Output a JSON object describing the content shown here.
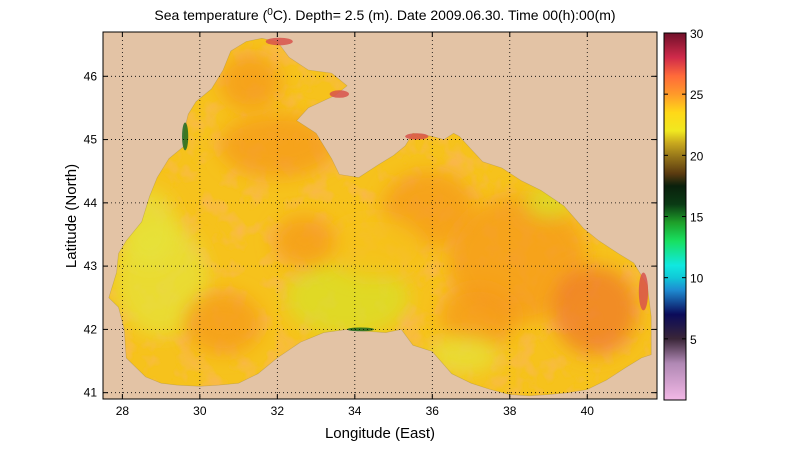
{
  "title": {
    "prefix": "Sea temperature (",
    "sup": "0",
    "suffix": "C). Depth=  2.5 (m). Date 2009.06.30. Time 00(h):00(m)"
  },
  "map": {
    "xlabel": "Longitude (East)",
    "ylabel": "Latitude (North)",
    "xlim": [
      27.5,
      41.8
    ],
    "ylim": [
      40.9,
      46.7
    ],
    "xticks": [
      28,
      30,
      32,
      34,
      36,
      38,
      40
    ],
    "yticks": [
      41,
      42,
      43,
      44,
      45,
      46
    ],
    "grid": "dotted",
    "colors": {
      "land": "#e3c3a5",
      "sea_base": "#f6c21c",
      "sea_warm": "#f59a1e",
      "sea_hot": "#ef7a2a",
      "sea_cool": "#e6e33a",
      "sea_coastal": "#d8e025",
      "coast_cold": "#1e6a1e",
      "coast_hot": "#d8534b"
    },
    "coastline_lonlat": [
      [
        27.65,
        42.5
      ],
      [
        27.9,
        42.35
      ],
      [
        28.05,
        42.0
      ],
      [
        28.1,
        41.55
      ],
      [
        28.6,
        41.25
      ],
      [
        29.0,
        41.15
      ],
      [
        29.4,
        41.12
      ],
      [
        30.0,
        41.1
      ],
      [
        30.5,
        41.12
      ],
      [
        31.0,
        41.15
      ],
      [
        31.5,
        41.3
      ],
      [
        32.0,
        41.55
      ],
      [
        32.6,
        41.8
      ],
      [
        33.2,
        41.95
      ],
      [
        33.8,
        42.0
      ],
      [
        34.3,
        41.97
      ],
      [
        34.8,
        41.95
      ],
      [
        35.2,
        42.0
      ],
      [
        35.5,
        41.75
      ],
      [
        36.0,
        41.65
      ],
      [
        36.5,
        41.3
      ],
      [
        37.0,
        41.15
      ],
      [
        37.5,
        41.05
      ],
      [
        38.0,
        40.97
      ],
      [
        38.5,
        40.95
      ],
      [
        39.0,
        40.97
      ],
      [
        39.5,
        41.0
      ],
      [
        40.0,
        41.05
      ],
      [
        40.5,
        41.2
      ],
      [
        41.0,
        41.4
      ],
      [
        41.4,
        41.55
      ],
      [
        41.65,
        41.6
      ],
      [
        41.65,
        42.2
      ],
      [
        41.55,
        42.7
      ],
      [
        41.2,
        43.05
      ],
      [
        40.8,
        43.2
      ],
      [
        40.3,
        43.4
      ],
      [
        39.9,
        43.6
      ],
      [
        39.4,
        43.95
      ],
      [
        38.8,
        44.2
      ],
      [
        38.3,
        44.35
      ],
      [
        37.8,
        44.55
      ],
      [
        37.3,
        44.65
      ],
      [
        37.0,
        44.85
      ],
      [
        36.7,
        45.05
      ],
      [
        36.55,
        45.1
      ],
      [
        36.3,
        45.0
      ],
      [
        36.0,
        45.05
      ],
      [
        35.5,
        45.1
      ],
      [
        35.3,
        44.9
      ],
      [
        35.0,
        44.75
      ],
      [
        34.6,
        44.6
      ],
      [
        34.1,
        44.4
      ],
      [
        33.6,
        44.45
      ],
      [
        33.4,
        44.7
      ],
      [
        33.0,
        45.1
      ],
      [
        32.5,
        45.3
      ],
      [
        32.8,
        45.5
      ],
      [
        33.5,
        45.7
      ],
      [
        33.8,
        45.85
      ],
      [
        33.4,
        46.05
      ],
      [
        32.8,
        46.1
      ],
      [
        32.3,
        46.3
      ],
      [
        32.0,
        46.55
      ],
      [
        31.6,
        46.6
      ],
      [
        31.2,
        46.55
      ],
      [
        30.8,
        46.4
      ],
      [
        30.6,
        46.1
      ],
      [
        30.3,
        45.8
      ],
      [
        29.9,
        45.6
      ],
      [
        29.7,
        45.4
      ],
      [
        29.6,
        45.15
      ],
      [
        29.6,
        44.9
      ],
      [
        29.2,
        44.7
      ],
      [
        28.9,
        44.4
      ],
      [
        28.7,
        44.1
      ],
      [
        28.5,
        43.7
      ],
      [
        28.1,
        43.4
      ],
      [
        27.9,
        43.2
      ],
      [
        27.85,
        42.9
      ],
      [
        27.65,
        42.5
      ]
    ]
  },
  "colorbar": {
    "min": 0,
    "max": 30,
    "ticks": [
      5,
      10,
      15,
      20,
      25,
      30
    ],
    "colormap": [
      [
        0,
        "#f2b8e6"
      ],
      [
        3,
        "#b088b4"
      ],
      [
        5,
        "#3a2638"
      ],
      [
        7,
        "#0b0b5a"
      ],
      [
        9,
        "#1e8cd2"
      ],
      [
        10,
        "#10c8d8"
      ],
      [
        11,
        "#10e8e0"
      ],
      [
        13,
        "#18e060"
      ],
      [
        14.5,
        "#1ea02a"
      ],
      [
        16,
        "#0a3a14"
      ],
      [
        17.5,
        "#0a200c"
      ],
      [
        18.5,
        "#5a3a10"
      ],
      [
        20,
        "#9a7a1a"
      ],
      [
        21,
        "#c8a81e"
      ],
      [
        22,
        "#f0e820"
      ],
      [
        23.5,
        "#ffd818"
      ],
      [
        25,
        "#ff9a2a"
      ],
      [
        26.5,
        "#ff6a3a"
      ],
      [
        28,
        "#d02a4a"
      ],
      [
        30,
        "#70102a"
      ]
    ]
  }
}
